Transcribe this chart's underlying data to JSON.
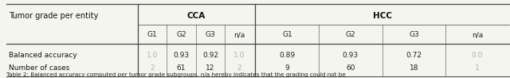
{
  "title_col": "Tumor grade per entity",
  "col_groups": [
    {
      "label": "CCA",
      "cols": [
        "G1",
        "G2",
        "G3",
        "n/a"
      ]
    },
    {
      "label": "HCC",
      "cols": [
        "G1",
        "G2",
        "G3",
        "n/a"
      ]
    }
  ],
  "rows": [
    {
      "label": "Balanced accuracy",
      "cca": [
        "1.0",
        "0.93",
        "0.92",
        "1.0"
      ],
      "hcc": [
        "0.89",
        "0.93",
        "0.72",
        "0.0"
      ],
      "cca_gray": [
        true,
        false,
        false,
        true
      ],
      "hcc_gray": [
        false,
        false,
        false,
        true
      ]
    },
    {
      "label": "Number of cases",
      "cca": [
        "2",
        "61",
        "12",
        "2"
      ],
      "hcc": [
        "9",
        "60",
        "18",
        "1"
      ],
      "cca_gray": [
        true,
        false,
        false,
        true
      ],
      "hcc_gray": [
        false,
        false,
        false,
        true
      ]
    }
  ],
  "caption": "Table 2: Balanced accuracy computed per tumor grade subgroups. n/a hereby indicates that the grading could not be",
  "background_color": "#f5f5f0",
  "gray_text_color": "#b0b0b0",
  "normal_text_color": "#222222",
  "header_bold_color": "#111111",
  "line_color": "#444444",
  "figsize": [
    6.4,
    0.98
  ],
  "dpi": 100
}
